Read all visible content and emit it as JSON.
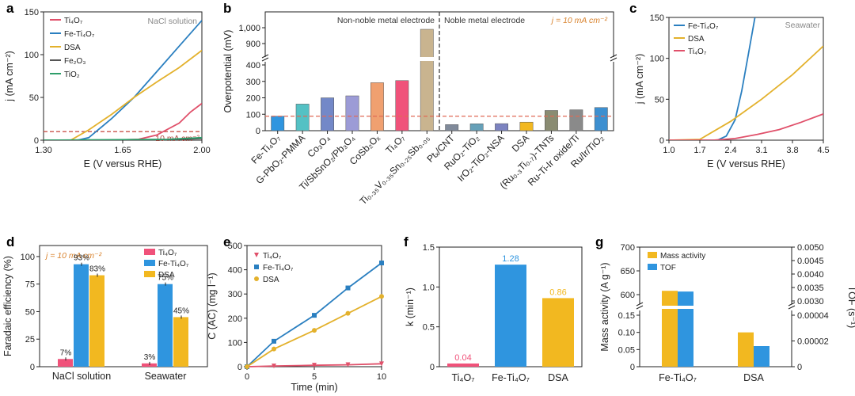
{
  "colors": {
    "Ti4O7": "#e0506a",
    "FeTi4O7": "#2a7fc0",
    "DSA": "#e3b12c",
    "Fe2O3": "#555555",
    "TiO2": "#2e9e6a",
    "blue": "#2f95df",
    "yellow": "#f2b820",
    "pink": "#f0527a"
  },
  "chart_data": [
    {
      "panel": "a",
      "type": "line",
      "title": "NaCl solution",
      "xlabel": "E (V versus RHE)",
      "ylabel": "j (mA cm⁻²)",
      "xlim": [
        1.3,
        2.0
      ],
      "ylim": [
        0,
        150
      ],
      "xticks": [
        "1.30",
        "1.65",
        "2.00"
      ],
      "yticks": [
        "0",
        "50",
        "100",
        "150"
      ],
      "reference_label": "10 mA cm⁻²",
      "series": [
        {
          "name": "Ti₄O₇",
          "key": "Ti4O7",
          "x": [
            1.3,
            1.6,
            1.72,
            1.8,
            1.9,
            1.95,
            2.0
          ],
          "y": [
            0,
            0,
            1,
            6,
            20,
            33,
            43
          ]
        },
        {
          "name": "Fe-Ti₄O₇",
          "key": "FeTi4O7",
          "x": [
            1.3,
            1.45,
            1.5,
            1.6,
            1.7,
            1.8,
            1.9,
            2.0
          ],
          "y": [
            0,
            0,
            3,
            25,
            50,
            80,
            110,
            140
          ]
        },
        {
          "name": "DSA",
          "key": "DSA",
          "x": [
            1.3,
            1.42,
            1.5,
            1.6,
            1.7,
            1.8,
            1.9,
            2.0
          ],
          "y": [
            0,
            0,
            12,
            30,
            50,
            68,
            85,
            105
          ]
        },
        {
          "name": "Fe₂O₃",
          "key": "Fe2O3",
          "x": [
            1.3,
            1.85,
            2.0
          ],
          "y": [
            0,
            0.5,
            2
          ]
        },
        {
          "name": "TiO₂",
          "key": "TiO2",
          "x": [
            1.3,
            1.85,
            2.0
          ],
          "y": [
            0,
            1,
            3
          ]
        }
      ]
    },
    {
      "panel": "b",
      "type": "bar",
      "ylabel": "Overpotential (mV)",
      "yticks_lower": [
        "0",
        "100",
        "200",
        "300",
        "400"
      ],
      "yticks_upper": [
        "900",
        "1,000"
      ],
      "section_left": "Non-noble metal electrode",
      "section_right": "Noble metal electrode",
      "condition": "j = 10 mA cm⁻²",
      "reference_value": 88,
      "categories": [
        "Fe-Ti₄O₇",
        "G-PbO₂-PMMA",
        "Co₃O₄",
        "Ti/SbSnO₂/Pb₃O₄",
        "CoSb₂Oₓ",
        "Ti₄O₇",
        "Ti₀.₃₅V₀.₃₅Sn₀.₂₅Sb₀.₀₅",
        "Ptₓ/CNT",
        "RuO₂-TiO₂",
        "IrO₂-TiO₂-NSA",
        "DSA",
        "(Ru₀.₃Ti₀.₇)-TNTs",
        "Ru-Ti-Ir oxide/Ti",
        "Ru/Ir/TiO₂"
      ],
      "values": [
        88,
        162,
        200,
        212,
        292,
        305,
        990,
        37,
        42,
        43,
        52,
        123,
        127,
        141
      ],
      "bar_colors": [
        "#2f95df",
        "#54c1c4",
        "#7388c8",
        "#9c9bd6",
        "#f0a070",
        "#f0527a",
        "#c9b48f",
        "#808a9a",
        "#66a0b8",
        "#7c83c0",
        "#f2b820",
        "#8a8c72",
        "#8a8a8a",
        "#3d8fd0"
      ]
    },
    {
      "panel": "c",
      "type": "line",
      "title": "Seawater",
      "xlabel": "E (V versus RHE)",
      "ylabel": "j (mA cm⁻²)",
      "xlim": [
        1.0,
        4.5
      ],
      "ylim": [
        0,
        150
      ],
      "xticks": [
        "1.0",
        "1.7",
        "2.4",
        "3.1",
        "3.8",
        "4.5"
      ],
      "yticks": [
        "0",
        "50",
        "100",
        "150"
      ],
      "series": [
        {
          "name": "Fe-Ti₄O₇",
          "key": "FeTi4O7",
          "x": [
            1.0,
            2.1,
            2.3,
            2.5,
            2.65,
            2.8,
            2.95
          ],
          "y": [
            0,
            0,
            5,
            25,
            60,
            105,
            150
          ]
        },
        {
          "name": "DSA",
          "key": "DSA",
          "x": [
            1.0,
            1.7,
            2.4,
            3.1,
            3.8,
            4.5
          ],
          "y": [
            0,
            1,
            23,
            50,
            80,
            115
          ]
        },
        {
          "name": "Ti₄O₇",
          "key": "Ti4O7",
          "x": [
            1.0,
            2.0,
            2.5,
            3.0,
            3.5,
            4.0,
            4.5
          ],
          "y": [
            0,
            0,
            2,
            7,
            13,
            22,
            32
          ]
        }
      ]
    },
    {
      "panel": "d",
      "type": "bar",
      "ylabel": "Faradaic efficiency (%)",
      "condition": "j = 10 mA cm⁻²",
      "ylim": [
        0,
        100
      ],
      "yticks": [
        "0",
        "25",
        "50",
        "75",
        "100"
      ],
      "categories": [
        "NaCl solution",
        "Seawater"
      ],
      "series": [
        {
          "name": "Ti₄O₇",
          "key": "pink",
          "values": [
            7,
            3
          ],
          "labels": [
            "7%",
            "3%"
          ]
        },
        {
          "name": "Fe-Ti₄O₇",
          "key": "blue",
          "values": [
            93,
            75
          ],
          "labels": [
            "93%",
            "75%"
          ]
        },
        {
          "name": "DSA",
          "key": "yellow",
          "values": [
            83,
            45
          ],
          "labels": [
            "83%",
            "45%"
          ]
        }
      ]
    },
    {
      "panel": "e",
      "type": "line",
      "xlabel": "Time (min)",
      "ylabel": "C (AC) (mg l⁻¹)",
      "xlim": [
        0,
        10
      ],
      "ylim": [
        0,
        500
      ],
      "xticks": [
        "0",
        "5",
        "10"
      ],
      "yticks": [
        "0",
        "100",
        "200",
        "300",
        "400",
        "500"
      ],
      "series": [
        {
          "name": "Ti₄O₇",
          "key": "Ti4O7",
          "marker": "triangle",
          "x": [
            0,
            2,
            5,
            7.5,
            10
          ],
          "y": [
            0,
            3,
            6,
            8,
            12
          ]
        },
        {
          "name": "Fe-Ti₄O₇",
          "key": "FeTi4O7",
          "marker": "square",
          "x": [
            0,
            2,
            5,
            7.5,
            10
          ],
          "y": [
            0,
            105,
            212,
            325,
            428
          ]
        },
        {
          "name": "DSA",
          "key": "DSA",
          "marker": "circle",
          "x": [
            0,
            2,
            5,
            7.5,
            10
          ],
          "y": [
            0,
            73,
            150,
            220,
            290
          ]
        }
      ]
    },
    {
      "panel": "f",
      "type": "bar",
      "ylabel": "k (min⁻¹)",
      "ylim": [
        0,
        1.5
      ],
      "yticks": [
        "0",
        "0.5",
        "1.0",
        "1.5"
      ],
      "categories": [
        "Ti₄O₇",
        "Fe-Ti₄O₇",
        "DSA"
      ],
      "values": [
        0.04,
        1.28,
        0.86
      ],
      "labels": [
        "0.04",
        "1.28",
        "0.86"
      ],
      "keys": [
        "pink",
        "blue",
        "yellow"
      ]
    },
    {
      "panel": "g",
      "type": "bar",
      "ylabel": "Mass activity (A g⁻¹)",
      "ylabel_right": "TOF (s⁻¹)",
      "yticks_left_lower": [
        "0",
        "0.05",
        "0.10",
        "0.15"
      ],
      "yticks_left_upper": [
        "600",
        "650",
        "700"
      ],
      "yticks_right_lower": [
        "0",
        "0.00002",
        "0.00004"
      ],
      "yticks_right_upper": [
        "0.0030",
        "0.0035",
        "0.0040",
        "0.0045",
        "0.0050"
      ],
      "categories": [
        "Fe-Ti₄O₇",
        "DSA"
      ],
      "series": [
        {
          "name": "Mass activity",
          "key": "yellow",
          "values": [
            608,
            0.1
          ]
        },
        {
          "name": "TOF",
          "key": "blue",
          "values": [
            0.00335,
            1.6e-05
          ]
        }
      ]
    }
  ]
}
